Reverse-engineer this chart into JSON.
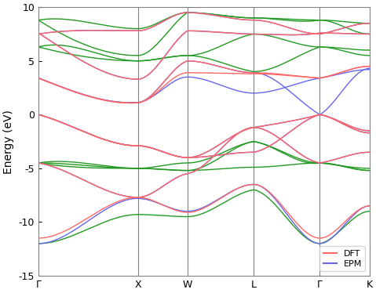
{
  "kpoint_labels": [
    "Γ",
    "X",
    "W",
    "L",
    "Γ",
    "K"
  ],
  "kpoint_positions": [
    0.0,
    0.3,
    0.45,
    0.65,
    0.85,
    1.0
  ],
  "ylim": [
    -15,
    10
  ],
  "ylabel": "Energy (eV)",
  "color_dft": "#ff6666",
  "color_epm_si": "#6666ee",
  "color_epm_wbg": "#229922",
  "linewidth": 1.0,
  "legend_fontsize": 8,
  "tick_fontsize": 9,
  "label_fontsize": 10,
  "figsize": [
    4.79,
    3.74
  ],
  "dpi": 100
}
